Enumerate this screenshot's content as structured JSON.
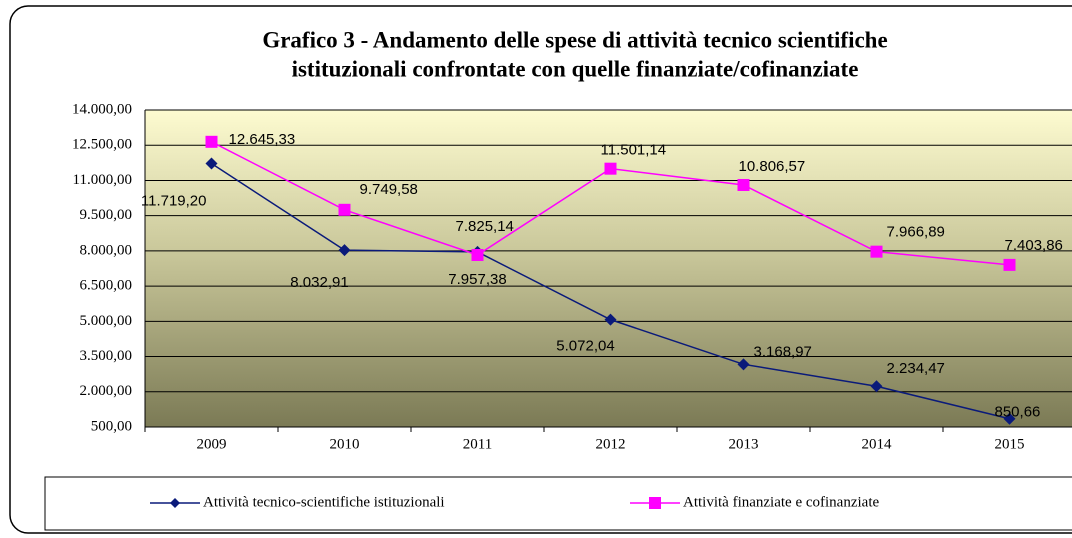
{
  "chart_data": {
    "type": "line",
    "title": [
      "Grafico 3 - Andamento delle spese di attività tecnico scientifiche",
      "istituzionali confrontate con quelle finanziate/cofinanziate"
    ],
    "categories": [
      "2009",
      "2010",
      "2011",
      "2012",
      "2013",
      "2014",
      "2015"
    ],
    "series": [
      {
        "name": "Attività tecnico-scientifiche istituzionali",
        "color": "#0a1a7a",
        "marker": "diamond",
        "values": [
          11719.2,
          8032.91,
          7957.38,
          5072.04,
          3168.97,
          2234.47,
          850.66
        ],
        "value_labels": [
          "11.719,20",
          "8.032,91",
          "7.957,38",
          "5.072,04",
          "3.168,97",
          "2.234,47",
          "850,66"
        ]
      },
      {
        "name": "Attività finanziate e cofinanziate",
        "color": "#ff00ff",
        "marker": "square",
        "values": [
          12645.33,
          9749.58,
          7825.14,
          11501.14,
          10806.57,
          7966.89,
          7403.86
        ],
        "value_labels": [
          "12.645,33",
          "9.749,58",
          "7.825,14",
          "11.501,14",
          "10.806,57",
          "7.966,89",
          "7.403,86"
        ]
      }
    ],
    "ylim": [
      500,
      14000
    ],
    "yticks": [
      {
        "value": 500,
        "label": "500,00"
      },
      {
        "value": 2000,
        "label": "2.000,00"
      },
      {
        "value": 3500,
        "label": "3.500,00"
      },
      {
        "value": 5000,
        "label": "5.000,00"
      },
      {
        "value": 6500,
        "label": "6.500,00"
      },
      {
        "value": 8000,
        "label": "8.000,00"
      },
      {
        "value": 9500,
        "label": "9.500,00"
      },
      {
        "value": 11000,
        "label": "11.000,00"
      },
      {
        "value": 12500,
        "label": "12.500,00"
      },
      {
        "value": 14000,
        "label": "14.000,00"
      }
    ],
    "grid": true,
    "legend": "bottom"
  }
}
